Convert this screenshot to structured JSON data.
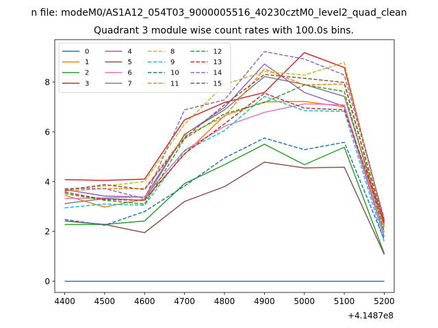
{
  "chart_data": {
    "type": "line",
    "suptitle": "n file: modeM0/AS1A12_054T03_9000005516_40230cztM0_level2_quad_clean",
    "title": "Quadrant 3 module wise count rates with 100.0s bins.",
    "xlabel": "",
    "ylabel": "",
    "x_offset_label": "+4.1487e8",
    "x": [
      4400,
      4500,
      4600,
      4700,
      4800,
      4900,
      5000,
      5100,
      5200
    ],
    "xlim": [
      4375,
      5225
    ],
    "ylim": [
      -0.45,
      9.7
    ],
    "xticks": [
      4400,
      4500,
      4600,
      4700,
      4800,
      4900,
      5000,
      5100,
      5200
    ],
    "yticks": [
      0,
      2,
      4,
      6,
      8
    ],
    "grid": false,
    "legend": {
      "placement": "top-left",
      "ncol": 4
    },
    "series": [
      {
        "name": "0",
        "color": "#1f77b4",
        "dash": "solid",
        "values": [
          0,
          0,
          0,
          0,
          0,
          0,
          0,
          0,
          0
        ]
      },
      {
        "name": "1",
        "color": "#ff7f0e",
        "dash": "solid",
        "values": [
          3.45,
          2.98,
          3.3,
          5.1,
          6.65,
          7.2,
          7.22,
          7.0,
          2.2
        ]
      },
      {
        "name": "2",
        "color": "#2ca02c",
        "dash": "solid",
        "values": [
          2.28,
          2.28,
          2.42,
          3.92,
          4.68,
          5.5,
          4.68,
          5.38,
          1.12
        ]
      },
      {
        "name": "3",
        "color": "#d62728",
        "dash": "solid",
        "values": [
          4.08,
          4.05,
          4.1,
          6.48,
          7.18,
          7.58,
          9.18,
          8.58,
          2.42
        ]
      },
      {
        "name": "4",
        "color": "#9467bd",
        "dash": "solid",
        "values": [
          3.68,
          3.42,
          3.38,
          5.88,
          6.98,
          8.72,
          7.58,
          7.02,
          1.78
        ]
      },
      {
        "name": "5",
        "color": "#8c564b",
        "dash": "solid",
        "values": [
          2.42,
          2.28,
          1.95,
          3.2,
          3.8,
          4.78,
          4.55,
          4.58,
          1.08
        ]
      },
      {
        "name": "6",
        "color": "#e377c2",
        "dash": "solid",
        "values": [
          3.32,
          3.35,
          3.38,
          5.25,
          6.22,
          6.78,
          7.12,
          7.08,
          1.95
        ]
      },
      {
        "name": "7",
        "color": "#7f7f7f",
        "dash": "solid",
        "values": [
          3.12,
          3.32,
          3.25,
          5.9,
          6.88,
          8.22,
          7.9,
          7.42,
          2.28
        ]
      },
      {
        "name": "8",
        "color": "#bcbd22",
        "dash": "dashed",
        "values": [
          3.7,
          3.82,
          4.0,
          6.3,
          7.9,
          8.42,
          8.28,
          8.78,
          2.2
        ]
      },
      {
        "name": "9",
        "color": "#17becf",
        "dash": "dashed",
        "values": [
          2.95,
          3.1,
          3.05,
          5.22,
          6.05,
          7.42,
          6.85,
          6.82,
          1.58
        ]
      },
      {
        "name": "10",
        "color": "#1f77b4",
        "dash": "dashed",
        "values": [
          2.48,
          2.25,
          2.8,
          3.82,
          4.95,
          5.75,
          5.28,
          5.58,
          1.68
        ]
      },
      {
        "name": "11",
        "color": "#ff7f0e",
        "dash": "dashed",
        "values": [
          3.62,
          3.72,
          3.72,
          5.82,
          6.62,
          8.52,
          7.88,
          7.92,
          2.12
        ]
      },
      {
        "name": "12",
        "color": "#2ca02c",
        "dash": "dashed",
        "values": [
          3.52,
          3.25,
          3.1,
          5.72,
          6.72,
          7.18,
          7.88,
          7.62,
          1.98
        ]
      },
      {
        "name": "13",
        "color": "#d62728",
        "dash": "dashed",
        "values": [
          3.58,
          3.28,
          3.25,
          5.12,
          6.32,
          7.55,
          6.95,
          6.88,
          2.35
        ]
      },
      {
        "name": "14",
        "color": "#9467bd",
        "dash": "dashed",
        "values": [
          3.72,
          3.72,
          3.32,
          6.88,
          7.28,
          9.22,
          8.92,
          8.28,
          2.52
        ]
      },
      {
        "name": "15",
        "color": "#8c564b",
        "dash": "dashed",
        "values": [
          3.65,
          3.88,
          3.68,
          5.75,
          7.08,
          8.3,
          8.15,
          7.98,
          2.28
        ]
      }
    ]
  }
}
